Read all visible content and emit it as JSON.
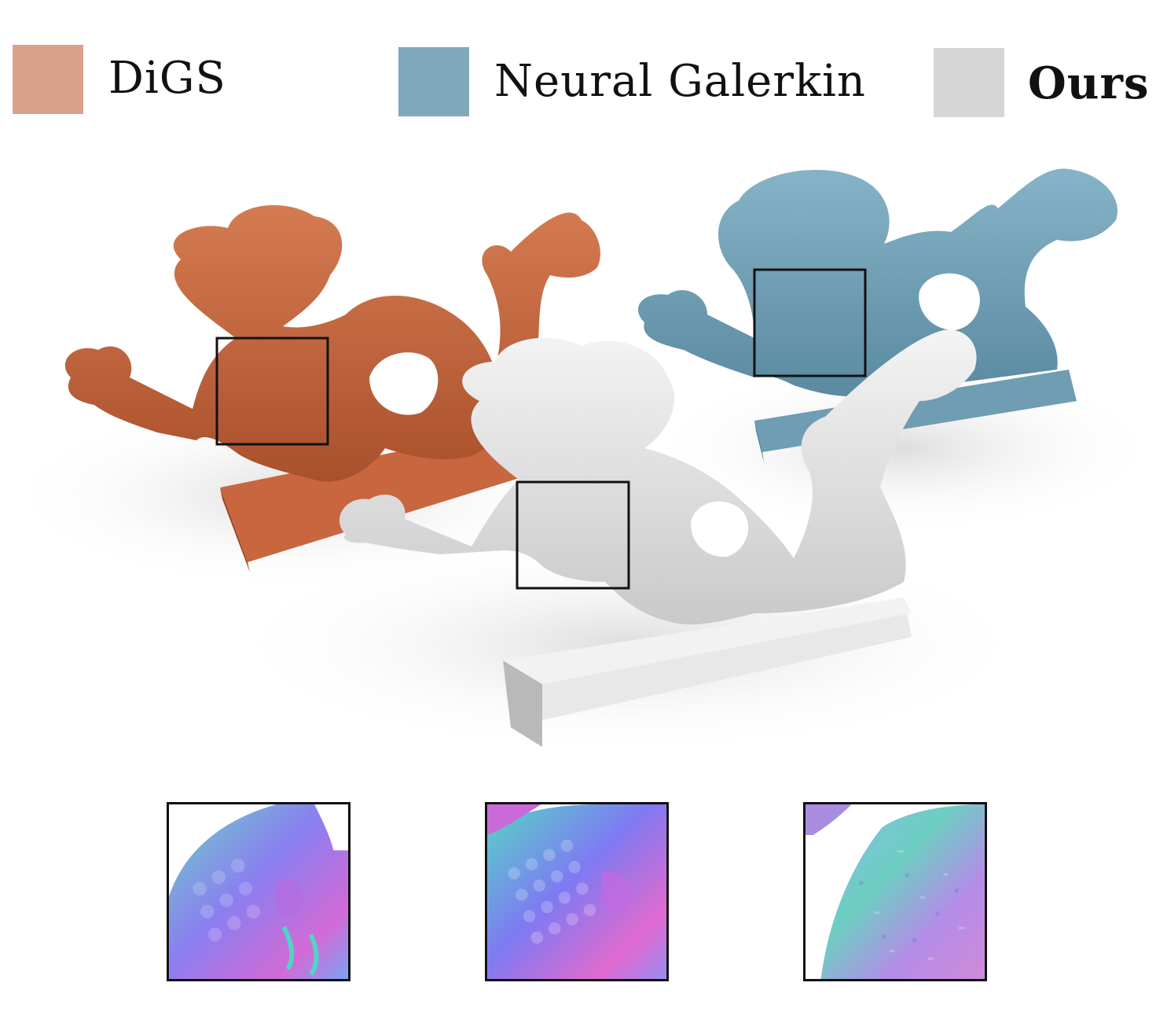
{
  "legend": [
    {
      "label": "DiGS",
      "color": "#d9a08a",
      "bold": false
    },
    {
      "label": "Neural Galerkin",
      "color": "#7fa8ba",
      "bold": false
    },
    {
      "label": "Ours",
      "color": "#d6d6d6",
      "bold": true
    }
  ],
  "models": [
    {
      "method": "DiGS",
      "icon": "dragon-render-icon",
      "color": "#c8663f"
    },
    {
      "method": "Neural Galerkin",
      "icon": "dragon-render-icon",
      "color": "#6f9db3"
    },
    {
      "method": "Ours",
      "icon": "dragon-render-icon",
      "color": "#e6e6e6"
    }
  ],
  "insets": [
    {
      "method": "DiGS",
      "icon": "normal-map-closeup-icon"
    },
    {
      "method": "Ours",
      "icon": "normal-map-closeup-icon"
    },
    {
      "method": "Neural Galerkin",
      "icon": "normal-map-closeup-icon"
    }
  ]
}
